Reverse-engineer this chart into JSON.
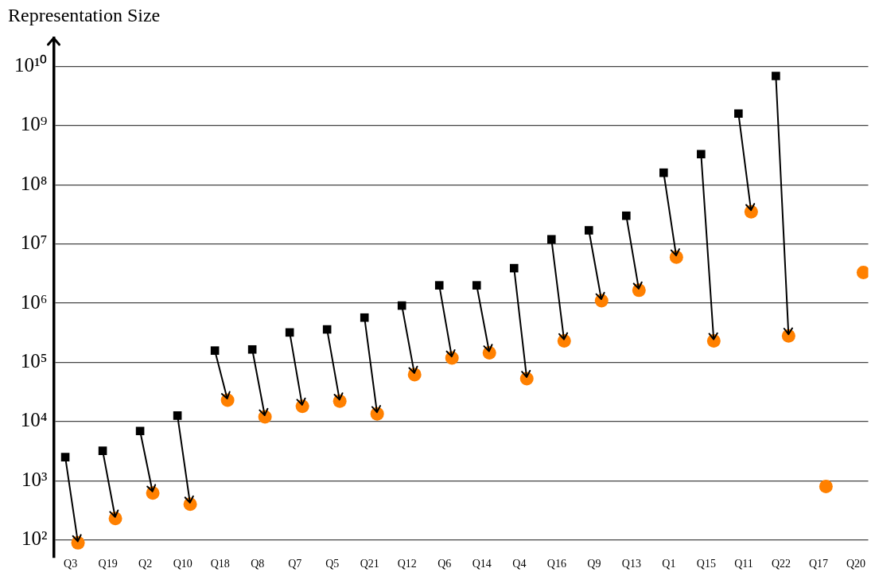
{
  "chart_data": {
    "type": "scatter",
    "ylabel": "Representation Size",
    "categories": [
      "Q3",
      "Q19",
      "Q2",
      "Q10",
      "Q18",
      "Q8",
      "Q7",
      "Q5",
      "Q21",
      "Q12",
      "Q6",
      "Q14",
      "Q4",
      "Q16",
      "Q9",
      "Q13",
      "Q1",
      "Q15",
      "Q11",
      "Q22",
      "Q17",
      "Q20"
    ],
    "series": [
      {
        "color": "#000000",
        "marker": "square",
        "values": [
          2500,
          3200,
          6900,
          12600,
          158000,
          165000,
          320000,
          360000,
          570000,
          910000,
          2000000,
          2000000,
          3900000,
          12000000,
          17000000,
          30000000,
          160000000,
          330000000,
          1600000000,
          6900000000,
          null,
          null
        ]
      },
      {
        "color": "#ff8000",
        "marker": "circle",
        "values": [
          89,
          230,
          620,
          400,
          23000,
          12000,
          18000,
          22000,
          13500,
          62000,
          118000,
          145000,
          53000,
          230000,
          1100000,
          1650000,
          6000000,
          230000,
          35000000,
          280000,
          800,
          3300000
        ]
      }
    ],
    "log": "y",
    "ylim": [
      50,
      30000000000
    ],
    "yticks": [
      {
        "value": 100,
        "label": "10²"
      },
      {
        "value": 1000,
        "label": "10³"
      },
      {
        "value": 10000,
        "label": "10⁴"
      },
      {
        "value": 100000,
        "label": "10⁵"
      },
      {
        "value": 1000000,
        "label": "10⁶"
      },
      {
        "value": 10000000,
        "label": "10⁷"
      },
      {
        "value": 100000000,
        "label": "10⁸"
      },
      {
        "value": 1000000000,
        "label": "10⁹"
      },
      {
        "value": 10000000000,
        "label": "10¹⁰"
      }
    ],
    "grid": "y",
    "legend": false
  }
}
